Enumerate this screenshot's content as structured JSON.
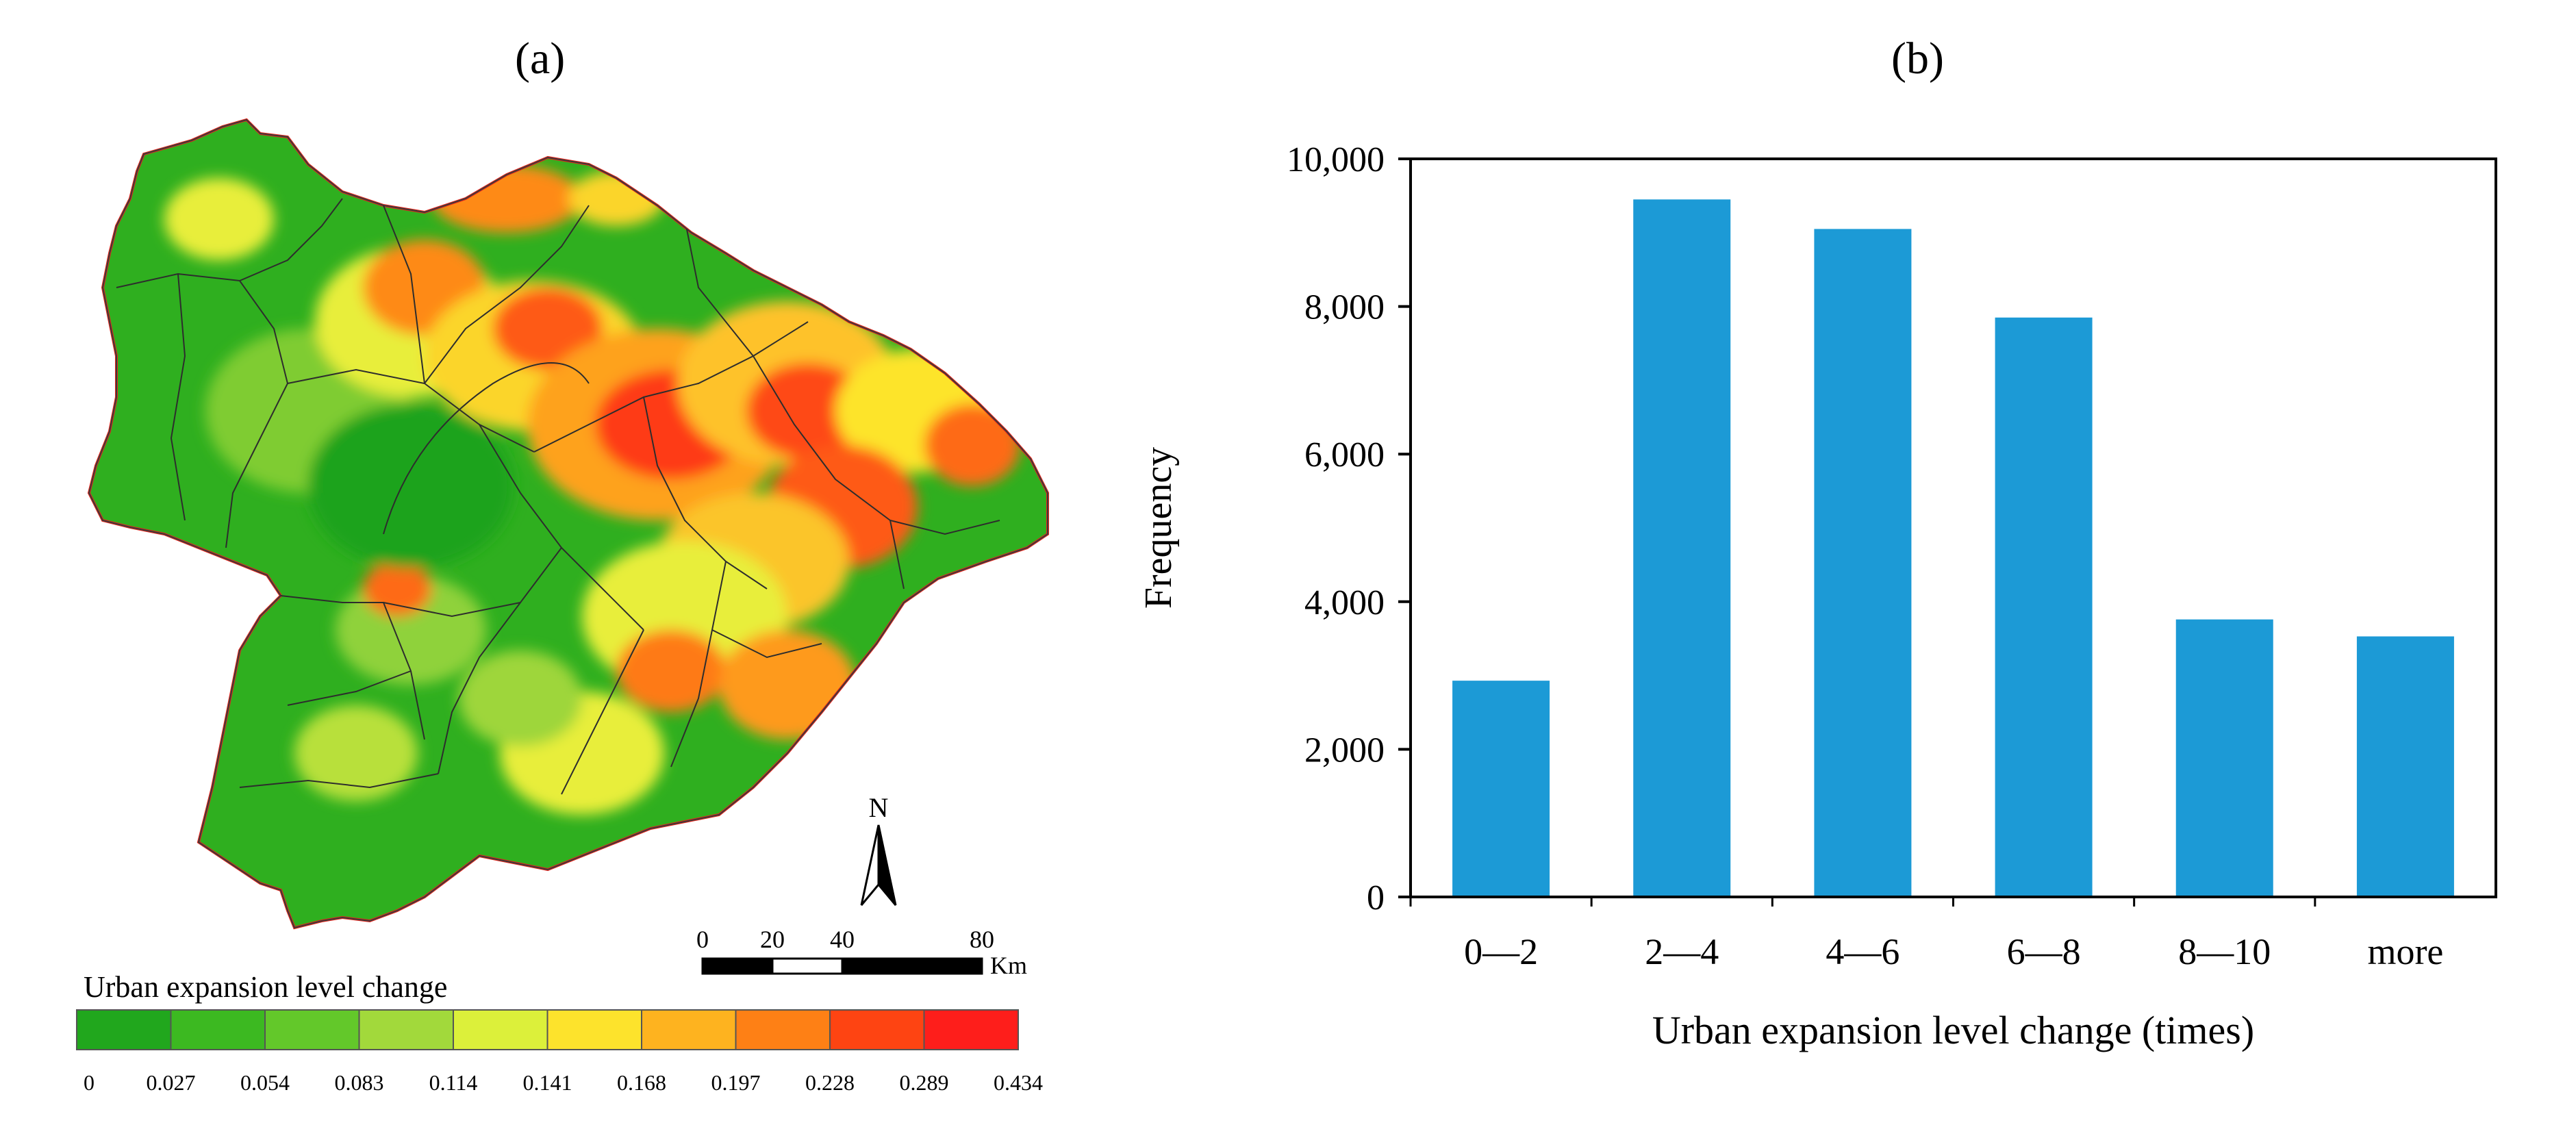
{
  "panel_a": {
    "label": "(a)",
    "legend": {
      "title": "Urban expansion level change",
      "colors": [
        "#21a71d",
        "#3cb921",
        "#63c82a",
        "#a2d93b",
        "#dcf03a",
        "#fde32c",
        "#feb31f",
        "#fe8015",
        "#fe4412",
        "#fe1e1b"
      ],
      "ticks": [
        "0",
        "0.027",
        "0.054",
        "0.083",
        "0.114",
        "0.141",
        "0.168",
        "0.197",
        "0.228",
        "0.289",
        "0.434"
      ]
    },
    "north": "N",
    "scale": {
      "ticks": [
        "0",
        "20",
        "40",
        "80"
      ],
      "unit": "Km"
    }
  },
  "panel_b": {
    "label": "(b)"
  },
  "chart_data": {
    "type": "bar",
    "categories": [
      "0—2",
      "2—4",
      "4—6",
      "6—8",
      "8—10",
      "more"
    ],
    "values": [
      2930,
      9450,
      9050,
      7850,
      3760,
      3530
    ],
    "title": "",
    "xlabel": "Urban expansion level change (times)",
    "ylabel": "Frequency",
    "ylim": [
      0,
      10000
    ],
    "yticks": [
      0,
      2000,
      4000,
      6000,
      8000,
      10000
    ],
    "ytick_labels": [
      "0",
      "2,000",
      "4,000",
      "6,000",
      "8,000",
      "10,000"
    ],
    "bar_color": "#1c9ad6",
    "grid": false
  }
}
